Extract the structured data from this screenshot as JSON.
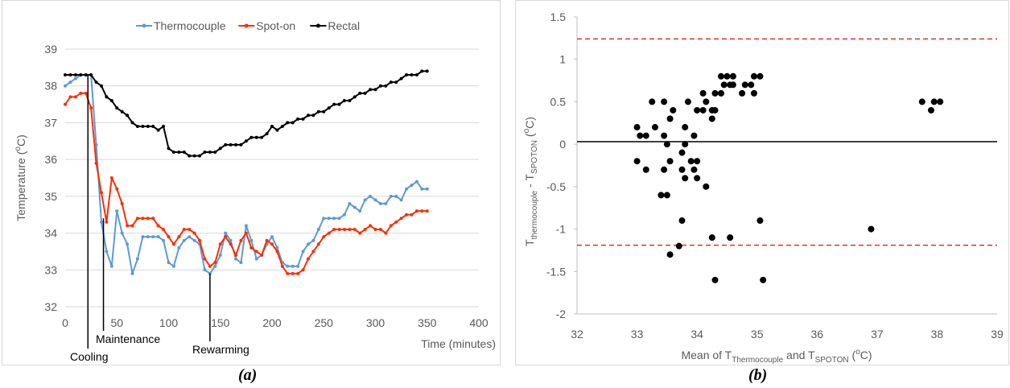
{
  "captions": {
    "a": "(a)",
    "b": "(b)"
  },
  "chart_data": [
    {
      "type": "line",
      "title": "",
      "xlabel": "Time (minutes)",
      "ylabel": "Temperature (oC)",
      "ylabel_parts": {
        "main": "Temperature (",
        "sup": "o",
        "end": "C)"
      },
      "xlim": [
        0,
        400
      ],
      "ylim": [
        32,
        39
      ],
      "xticks": [
        0,
        50,
        100,
        150,
        200,
        250,
        300,
        350,
        400
      ],
      "yticks": [
        32,
        33,
        34,
        35,
        36,
        37,
        38,
        39
      ],
      "grid": "horizontal",
      "legend": "top",
      "series": [
        {
          "name": "Thermocouple",
          "color": "#5b9bd5",
          "x": [
            0,
            5,
            10,
            15,
            20,
            25,
            30,
            35,
            40,
            45,
            50,
            55,
            60,
            65,
            70,
            75,
            80,
            85,
            90,
            95,
            100,
            105,
            110,
            115,
            120,
            125,
            130,
            135,
            140,
            145,
            150,
            155,
            160,
            165,
            170,
            175,
            180,
            185,
            190,
            195,
            200,
            205,
            210,
            215,
            220,
            225,
            230,
            235,
            240,
            245,
            250,
            255,
            260,
            265,
            270,
            275,
            280,
            285,
            290,
            295,
            300,
            305,
            310,
            315,
            320,
            325,
            330,
            335,
            340,
            345,
            350
          ],
          "y": [
            38.0,
            38.1,
            38.2,
            38.3,
            38.3,
            38.3,
            36.4,
            34.3,
            33.5,
            33.1,
            34.6,
            34.0,
            33.7,
            32.9,
            33.3,
            33.9,
            33.9,
            33.9,
            33.9,
            33.8,
            33.2,
            33.1,
            33.6,
            33.8,
            33.9,
            33.8,
            33.7,
            33.0,
            32.9,
            33.1,
            33.4,
            34.0,
            33.8,
            33.3,
            33.2,
            34.2,
            33.8,
            33.3,
            33.4,
            33.7,
            33.9,
            33.6,
            33.2,
            33.1,
            33.1,
            33.1,
            33.5,
            33.7,
            33.8,
            34.1,
            34.4,
            34.4,
            34.4,
            34.4,
            34.5,
            34.8,
            34.7,
            34.6,
            34.9,
            35.0,
            34.9,
            34.8,
            34.8,
            35.0,
            35.0,
            34.9,
            35.2,
            35.3,
            35.4,
            35.2,
            35.2
          ]
        },
        {
          "name": "Spot-on",
          "color": "#ff2d00",
          "x": [
            0,
            5,
            10,
            15,
            20,
            25,
            30,
            35,
            40,
            45,
            50,
            55,
            60,
            65,
            70,
            75,
            80,
            85,
            90,
            95,
            100,
            105,
            110,
            115,
            120,
            125,
            130,
            135,
            140,
            145,
            150,
            155,
            160,
            165,
            170,
            175,
            180,
            185,
            190,
            195,
            200,
            205,
            210,
            215,
            220,
            225,
            230,
            235,
            240,
            245,
            250,
            255,
            260,
            265,
            270,
            275,
            280,
            285,
            290,
            295,
            300,
            305,
            310,
            315,
            320,
            325,
            330,
            335,
            340,
            345,
            350
          ],
          "y": [
            37.5,
            37.7,
            37.7,
            37.8,
            37.8,
            37.4,
            35.9,
            35.1,
            34.3,
            35.5,
            35.2,
            34.8,
            34.2,
            34.2,
            34.4,
            34.4,
            34.4,
            34.4,
            34.2,
            34.1,
            33.9,
            33.7,
            33.9,
            34.1,
            34.1,
            34.0,
            33.8,
            33.3,
            33.1,
            33.2,
            33.7,
            33.9,
            33.7,
            33.4,
            33.8,
            34.0,
            33.6,
            33.5,
            33.4,
            33.8,
            33.7,
            33.5,
            33.1,
            32.9,
            32.9,
            32.9,
            33.0,
            33.3,
            33.5,
            33.7,
            33.9,
            34.0,
            34.1,
            34.1,
            34.1,
            34.1,
            34.1,
            34.0,
            34.1,
            34.2,
            34.1,
            34.1,
            34.0,
            34.2,
            34.3,
            34.4,
            34.5,
            34.5,
            34.6,
            34.6,
            34.6
          ]
        },
        {
          "name": "Rectal",
          "color": "#000000",
          "x": [
            0,
            5,
            10,
            15,
            20,
            25,
            30,
            35,
            40,
            45,
            50,
            55,
            60,
            65,
            70,
            75,
            80,
            85,
            90,
            95,
            100,
            105,
            110,
            115,
            120,
            125,
            130,
            135,
            140,
            145,
            150,
            155,
            160,
            165,
            170,
            175,
            180,
            185,
            190,
            195,
            200,
            205,
            210,
            215,
            220,
            225,
            230,
            235,
            240,
            245,
            250,
            255,
            260,
            265,
            270,
            275,
            280,
            285,
            290,
            295,
            300,
            305,
            310,
            315,
            320,
            325,
            330,
            335,
            340,
            345,
            350
          ],
          "y": [
            38.3,
            38.3,
            38.3,
            38.3,
            38.3,
            38.3,
            38.1,
            38.0,
            37.7,
            37.6,
            37.4,
            37.3,
            37.2,
            37.0,
            36.9,
            36.9,
            36.9,
            36.9,
            36.8,
            36.9,
            36.3,
            36.2,
            36.2,
            36.2,
            36.1,
            36.1,
            36.1,
            36.2,
            36.2,
            36.2,
            36.3,
            36.4,
            36.4,
            36.4,
            36.4,
            36.5,
            36.6,
            36.6,
            36.6,
            36.7,
            36.9,
            36.8,
            36.9,
            37.0,
            37.0,
            37.1,
            37.1,
            37.2,
            37.2,
            37.3,
            37.3,
            37.4,
            37.5,
            37.5,
            37.6,
            37.6,
            37.7,
            37.8,
            37.8,
            37.9,
            37.9,
            38.0,
            38.0,
            38.1,
            38.1,
            38.2,
            38.3,
            38.3,
            38.3,
            38.4,
            38.4
          ]
        }
      ],
      "annotations": [
        {
          "text": "Cooling",
          "x": 22,
          "y": 38.3
        },
        {
          "text": "Maintenance",
          "x": 37,
          "y": 34.4
        },
        {
          "text": "Rewarming",
          "x": 140,
          "y": 32.9
        }
      ]
    },
    {
      "type": "scatter",
      "title": "",
      "xlabel": "Mean of TThermocouple and TSPOTON (oC)",
      "xlabel_parts": {
        "a": "Mean of T",
        "sub1": "Thermocouple",
        "b": " and T",
        "sub2": "SPOTON",
        "c": " (",
        "sup": "o",
        "d": "C)"
      },
      "ylabel": "Tthermocouple - TSPOTON (oC)",
      "ylabel_parts": {
        "a": "T",
        "sub1": "thermocouple",
        "b": " - T",
        "sub2": "SPOTON",
        "c": " (",
        "sup": "o",
        "d": "C)"
      },
      "xlim": [
        32,
        39
      ],
      "ylim": [
        -2,
        1.5
      ],
      "xticks": [
        32,
        33,
        34,
        35,
        36,
        37,
        38,
        39
      ],
      "yticks": [
        -2,
        -1.5,
        -1,
        -0.5,
        0,
        0.5,
        1,
        1.5
      ],
      "ytick_labels": [
        "-2",
        "-1.5",
        "-1",
        "-0.5",
        "0",
        "0.5",
        "1",
        "1.5"
      ],
      "mean_line": 0.03,
      "limits_of_agreement": [
        1.24,
        -1.19
      ],
      "colors": {
        "points": "#000000",
        "mean": "#000000",
        "limits": "#e03030"
      },
      "points": [
        [
          33.0,
          0.2
        ],
        [
          33.05,
          0.1
        ],
        [
          33.15,
          0.1
        ],
        [
          33.3,
          0.2
        ],
        [
          33.0,
          -0.2
        ],
        [
          33.15,
          -0.3
        ],
        [
          33.25,
          0.5
        ],
        [
          33.45,
          0.5
        ],
        [
          33.45,
          0.1
        ],
        [
          33.5,
          0.0
        ],
        [
          33.55,
          0.3
        ],
        [
          33.6,
          0.4
        ],
        [
          33.45,
          -0.3
        ],
        [
          33.55,
          -0.2
        ],
        [
          33.4,
          -0.6
        ],
        [
          33.5,
          -0.6
        ],
        [
          33.75,
          -0.1
        ],
        [
          33.8,
          0.0
        ],
        [
          33.8,
          0.2
        ],
        [
          33.85,
          0.5
        ],
        [
          33.75,
          -0.3
        ],
        [
          33.8,
          -0.4
        ],
        [
          33.9,
          -0.2
        ],
        [
          33.95,
          -0.3
        ],
        [
          34.0,
          -0.2
        ],
        [
          34.0,
          -0.4
        ],
        [
          33.95,
          0.1
        ],
        [
          34.0,
          0.4
        ],
        [
          34.1,
          0.6
        ],
        [
          34.1,
          0.4
        ],
        [
          34.15,
          0.5
        ],
        [
          34.15,
          -0.5
        ],
        [
          34.25,
          0.4
        ],
        [
          34.25,
          0.3
        ],
        [
          34.3,
          0.6
        ],
        [
          34.3,
          0.4
        ],
        [
          34.4,
          0.6
        ],
        [
          34.45,
          0.7
        ],
        [
          34.4,
          0.8
        ],
        [
          34.5,
          0.8
        ],
        [
          34.55,
          0.7
        ],
        [
          34.6,
          0.8
        ],
        [
          34.6,
          0.7
        ],
        [
          34.75,
          0.6
        ],
        [
          34.8,
          0.7
        ],
        [
          34.9,
          0.7
        ],
        [
          34.95,
          0.8
        ],
        [
          35.05,
          0.8
        ],
        [
          34.95,
          0.6
        ],
        [
          33.75,
          -0.9
        ],
        [
          33.7,
          -1.2
        ],
        [
          33.55,
          -1.3
        ],
        [
          34.25,
          -1.1
        ],
        [
          34.55,
          -1.1
        ],
        [
          35.05,
          -0.9
        ],
        [
          34.3,
          -1.6
        ],
        [
          35.1,
          -1.6
        ],
        [
          36.9,
          -1.0
        ],
        [
          37.75,
          0.5
        ],
        [
          37.9,
          0.4
        ],
        [
          37.95,
          0.5
        ],
        [
          38.05,
          0.5
        ]
      ]
    }
  ]
}
